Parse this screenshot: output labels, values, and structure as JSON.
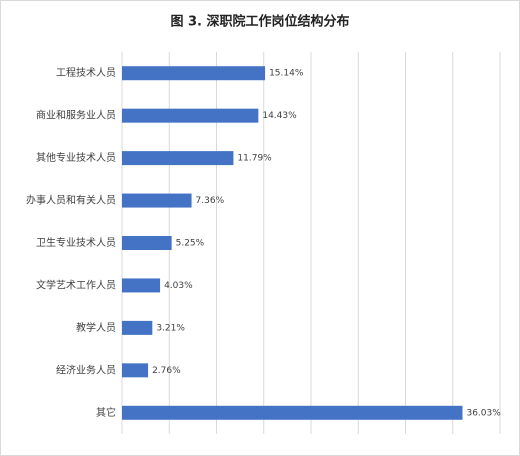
{
  "chart_data": {
    "type": "hbar",
    "title": "图 3. 深职院工作岗位结构分布",
    "categories": [
      "工程技术人员",
      "商业和服务业人员",
      "其他专业技术人员",
      "办事人员和有关人员",
      "卫生专业技术人员",
      "文学艺术工作人员",
      "教学人员",
      "经济业务人员",
      "其它"
    ],
    "values": [
      15.14,
      14.43,
      11.79,
      7.36,
      5.25,
      4.03,
      3.21,
      2.76,
      36.03
    ],
    "value_labels": [
      "15.14%",
      "14.43%",
      "11.79%",
      "7.36%",
      "5.25%",
      "4.03%",
      "3.21%",
      "2.76%",
      "36.03%"
    ],
    "color": "#4472c4",
    "xlim": [
      0,
      40
    ],
    "xticks": [
      0,
      5,
      10,
      15,
      20,
      25,
      30,
      35,
      40
    ],
    "grid": true
  }
}
